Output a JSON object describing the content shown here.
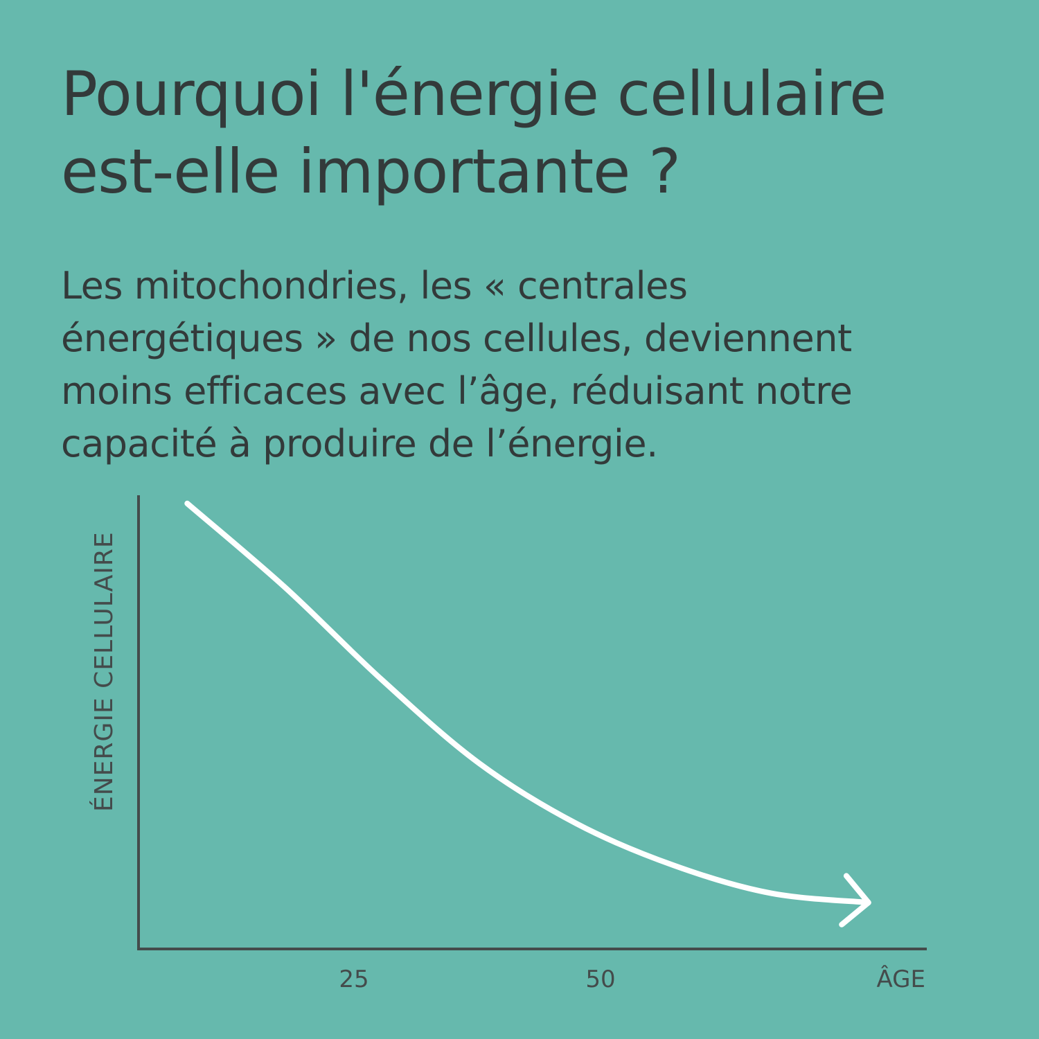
{
  "title_lines": [
    "Pourquoi l'énergie cellulaire",
    "est-elle importante ?"
  ],
  "body_lines": [
    "Les mitochondries, les « centrales",
    "énergétiques » de nos cellules, deviennent",
    "moins efficaces avec l’âge, réduisant notre",
    "capacité à produire de l’énergie."
  ],
  "colors": {
    "background": "#66b9ad",
    "text": "#333a3a",
    "axis": "#444b4b",
    "curve": "#ffffff"
  },
  "chart_data": {
    "type": "line",
    "xlabel": "ÂGE",
    "ylabel": "ÉNERGIE CELLULAIRE",
    "x_ticks": [
      {
        "label": "25",
        "value": 25
      },
      {
        "label": "50",
        "value": 50
      }
    ],
    "xlim": [
      0,
      80
    ],
    "ylim": [
      0,
      100
    ],
    "grid": false,
    "series": [
      {
        "values": [
          {
            "x": 5,
            "y": 96
          },
          {
            "x": 15,
            "y": 78
          },
          {
            "x": 25,
            "y": 58
          },
          {
            "x": 35,
            "y": 40
          },
          {
            "x": 45,
            "y": 27
          },
          {
            "x": 55,
            "y": 18
          },
          {
            "x": 65,
            "y": 12
          },
          {
            "x": 75,
            "y": 10
          }
        ],
        "arrowhead": true
      }
    ]
  }
}
